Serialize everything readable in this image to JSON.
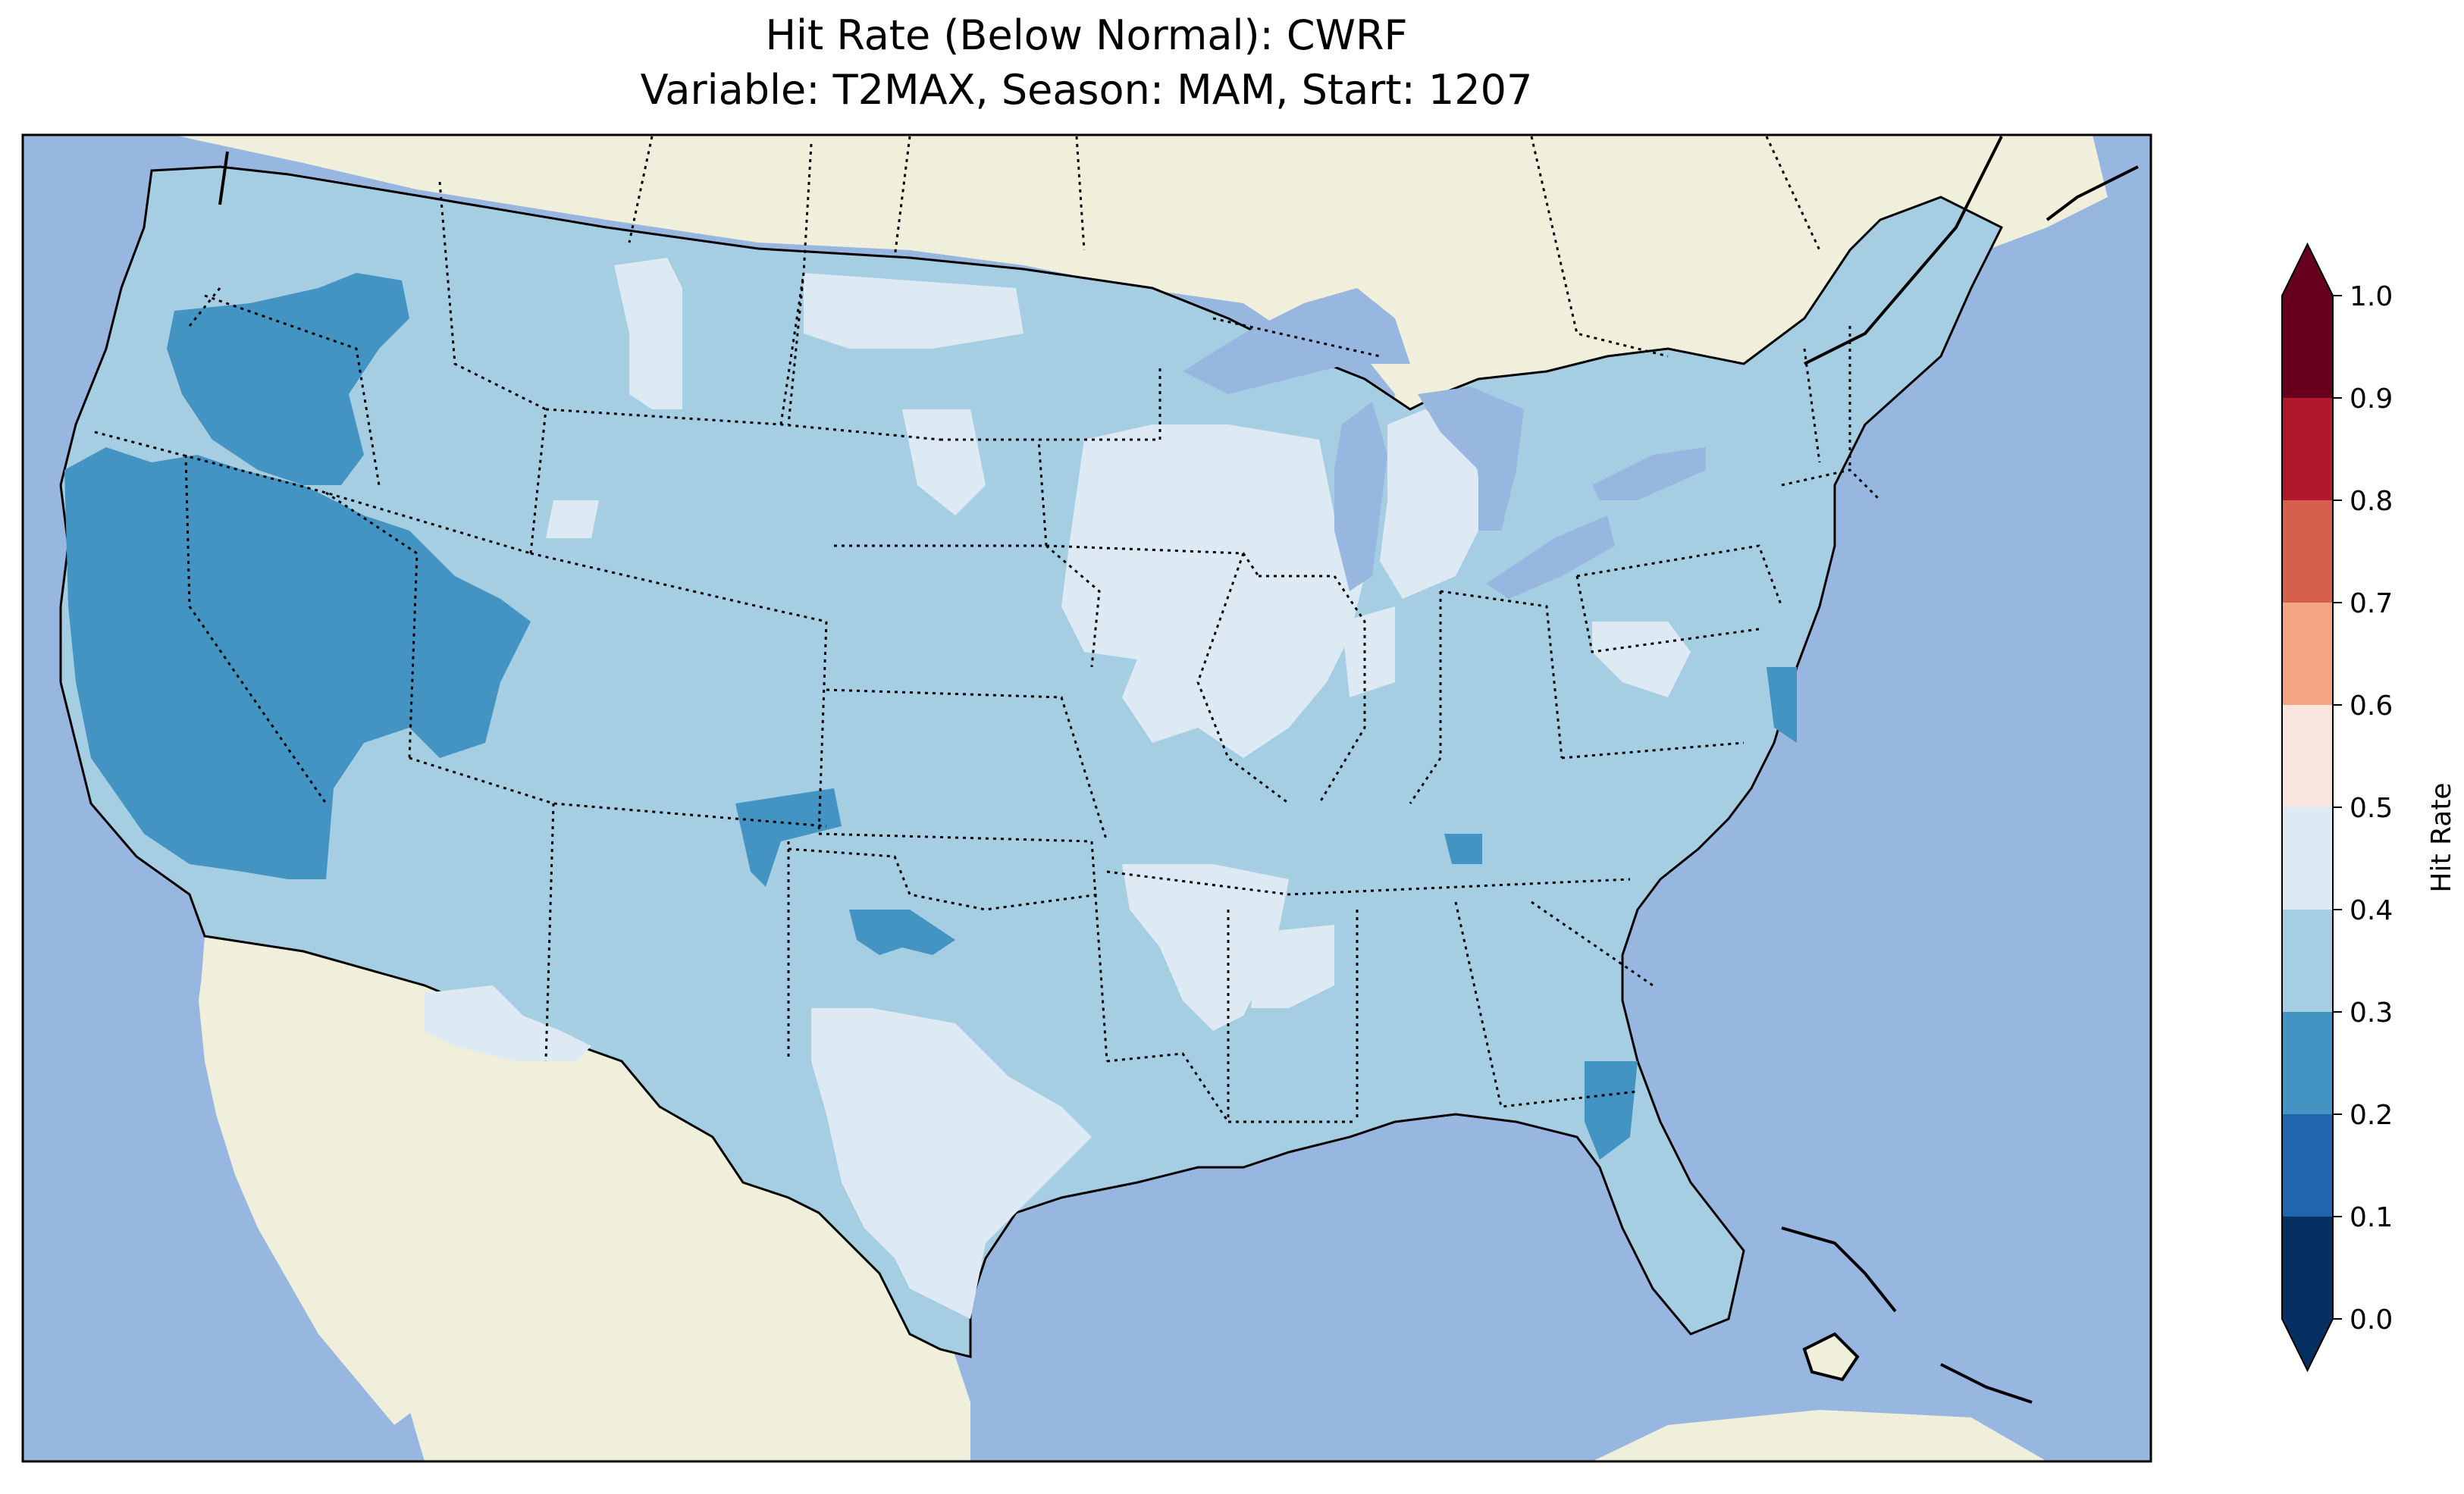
{
  "title_line1": "Hit Rate (Below Normal): CWRF",
  "title_line2": "Variable: T2MAX, Season: MAM, Start: 1207",
  "colorbar": {
    "label": "Hit Rate",
    "ticks": [
      "0.0",
      "0.1",
      "0.2",
      "0.3",
      "0.4",
      "0.5",
      "0.6",
      "0.7",
      "0.8",
      "0.9",
      "1.0"
    ],
    "bins": [
      {
        "from": 0.0,
        "to": 0.1,
        "color": "#053061"
      },
      {
        "from": 0.1,
        "to": 0.2,
        "color": "#2166ac"
      },
      {
        "from": 0.2,
        "to": 0.3,
        "color": "#4393c3"
      },
      {
        "from": 0.3,
        "to": 0.4,
        "color": "#a6cee3"
      },
      {
        "from": 0.4,
        "to": 0.5,
        "color": "#deeaf3"
      },
      {
        "from": 0.5,
        "to": 0.6,
        "color": "#f8e6de"
      },
      {
        "from": 0.6,
        "to": 0.7,
        "color": "#f4a582"
      },
      {
        "from": 0.7,
        "to": 0.8,
        "color": "#d6604d"
      },
      {
        "from": 0.8,
        "to": 0.9,
        "color": "#b2182b"
      },
      {
        "from": 0.9,
        "to": 1.0,
        "color": "#67001f"
      }
    ],
    "extend": "both"
  },
  "colors": {
    "ocean": "#97b6e0",
    "land": "#f0efdc",
    "lakes": "#97b6e0"
  }
}
